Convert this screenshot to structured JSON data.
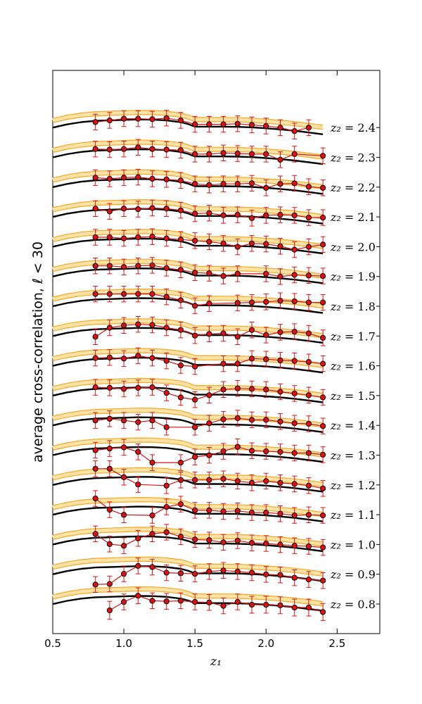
{
  "chart_data": {
    "type": "line",
    "title": "",
    "xlabel": "z₁",
    "ylabel": "average cross-correlation, ℓ < 30",
    "xlim": [
      0.5,
      2.8
    ],
    "xticks": [
      "0.5",
      "1.0",
      "1.5",
      "2.0",
      "2.5"
    ],
    "x": [
      0.8,
      0.9,
      1.0,
      1.1,
      1.2,
      1.3,
      1.4,
      1.5,
      1.6,
      1.7,
      1.8,
      1.9,
      2.0,
      2.1,
      2.2,
      2.3,
      2.4
    ],
    "theory_x": [
      0.5,
      0.6,
      0.7,
      0.8,
      0.9,
      1.0,
      1.1,
      1.2,
      1.3,
      1.4,
      1.45,
      1.5,
      1.6,
      1.7,
      1.8,
      1.9,
      2.0,
      2.1,
      2.2,
      2.3,
      2.4
    ],
    "theory_shape": [
      0.0,
      0.35,
      0.6,
      0.75,
      0.8,
      0.85,
      0.9,
      0.88,
      0.8,
      0.6,
      0.4,
      0.1,
      0.1,
      0.1,
      0.08,
      0.02,
      -0.08,
      -0.2,
      -0.35,
      -0.55,
      -0.75
    ],
    "series_note": "Each panel is vertically offset; data values are deviations (in stacked plot units) relative to the panel's black theory curve.",
    "series": [
      {
        "name": "z₂ = 0.8",
        "label_prefix": "z₂ =",
        "label_value": "0.8",
        "values": [
          null,
          -2.0,
          -0.5,
          0.6,
          -0.3,
          -0.4,
          -0.3,
          -0.5,
          -0.6,
          -1.2,
          -0.5,
          -1.0,
          -1.0,
          -1.1,
          -1.5,
          -1.5,
          -2.3
        ],
        "err": [
          null,
          1.6,
          1.4,
          1.4,
          1.4,
          1.4,
          1.4,
          1.4,
          1.4,
          1.4,
          1.4,
          1.5,
          1.5,
          1.5,
          1.5,
          1.5,
          1.5
        ]
      },
      {
        "name": "z₂ = 0.9",
        "label_prefix": "z₂ =",
        "label_value": "0.9",
        "values": [
          -2.7,
          -2.6,
          -0.8,
          0.6,
          0.4,
          -0.6,
          -0.7,
          -0.8,
          -0.4,
          -0.2,
          -0.4,
          -0.6,
          -0.9,
          -1.0,
          -1.5,
          -1.8,
          -2.0
        ],
        "err": [
          1.4,
          1.4,
          1.4,
          1.4,
          1.4,
          1.4,
          1.4,
          1.4,
          1.4,
          1.4,
          1.4,
          1.4,
          1.4,
          1.4,
          1.4,
          1.4,
          1.4
        ]
      },
      {
        "name": "z₂ = 1.0",
        "label_prefix": "z₂ =",
        "label_value": "1.0",
        "values": [
          1.0,
          -0.8,
          -1.1,
          0.2,
          1.0,
          1.3,
          0.5,
          0.0,
          -0.1,
          -0.5,
          -0.2,
          -0.6,
          -0.7,
          -0.9,
          -1.1,
          -1.2,
          -1.4
        ],
        "err": [
          1.4,
          1.4,
          1.4,
          1.4,
          1.4,
          1.4,
          1.4,
          1.4,
          1.4,
          1.4,
          1.4,
          1.4,
          1.4,
          1.4,
          1.4,
          1.4,
          1.4
        ]
      },
      {
        "name": "z₂ = 1.1",
        "label_prefix": "z₂ =",
        "label_value": "1.1",
        "values": [
          2.0,
          0.0,
          -0.9,
          null,
          -1.0,
          0.5,
          1.0,
          -0.1,
          -0.1,
          -0.3,
          -0.2,
          -0.5,
          -0.5,
          -0.7,
          -1.0,
          -0.9,
          -1.0
        ],
        "err": [
          1.4,
          1.4,
          1.4,
          null,
          1.4,
          1.4,
          1.4,
          1.4,
          1.4,
          1.4,
          1.4,
          1.4,
          1.4,
          1.4,
          1.4,
          1.4,
          1.4
        ]
      },
      {
        "name": "z₂ = 1.2",
        "label_prefix": "z₂ =",
        "label_value": "1.2",
        "values": [
          2.0,
          2.0,
          0.5,
          -0.8,
          null,
          -1.0,
          0.0,
          0.0,
          0.0,
          0.2,
          -0.2,
          -0.5,
          -0.2,
          -0.5,
          -0.7,
          -1.0,
          -1.5
        ],
        "err": [
          1.4,
          1.4,
          1.4,
          1.4,
          null,
          1.4,
          1.4,
          1.4,
          1.4,
          1.4,
          1.4,
          1.4,
          1.4,
          1.4,
          1.4,
          1.4,
          1.4
        ]
      },
      {
        "name": "z₂ = 1.3",
        "label_prefix": "z₂ =",
        "label_value": "1.3",
        "values": [
          0.0,
          0.3,
          0.5,
          -0.3,
          -2.2,
          null,
          -2.2,
          -1.2,
          -0.9,
          -0.2,
          0.6,
          -0.1,
          -0.2,
          -0.3,
          -0.5,
          -0.5,
          -0.8
        ],
        "err": [
          1.4,
          1.4,
          1.4,
          1.4,
          1.4,
          null,
          1.4,
          1.4,
          1.4,
          1.4,
          1.4,
          1.4,
          1.4,
          1.4,
          1.4,
          1.4,
          1.4
        ]
      },
      {
        "name": "z₂ = 1.4",
        "label_prefix": "z₂ =",
        "label_value": "1.4",
        "values": [
          0.0,
          0.3,
          0.0,
          -0.3,
          0.0,
          -1.2,
          null,
          -1.2,
          -0.5,
          0.2,
          0.4,
          0.1,
          0.1,
          -0.2,
          -0.5,
          -0.6,
          -1.0
        ],
        "err": [
          1.4,
          1.4,
          1.4,
          1.4,
          1.4,
          1.4,
          null,
          1.4,
          1.4,
          1.4,
          1.4,
          1.4,
          1.4,
          1.4,
          1.4,
          1.4,
          1.4
        ]
      },
      {
        "name": "z₂ = 1.5",
        "label_prefix": "z₂ =",
        "label_value": "1.5",
        "values": [
          0.6,
          0.5,
          0.3,
          0.5,
          0.6,
          -0.4,
          -1.2,
          -1.6,
          -0.8,
          0.2,
          0.4,
          0.3,
          0.2,
          -0.2,
          -0.5,
          -0.8,
          -1.2
        ],
        "err": [
          1.4,
          1.4,
          1.4,
          1.4,
          1.4,
          1.4,
          1.4,
          1.4,
          1.4,
          1.4,
          1.4,
          1.4,
          1.4,
          1.4,
          1.4,
          1.4,
          1.4
        ]
      },
      {
        "name": "z₂ = 1.6",
        "label_prefix": "z₂ =",
        "label_value": "1.6",
        "values": [
          0.5,
          0.6,
          0.4,
          0.9,
          0.5,
          0.0,
          -0.8,
          -1.0,
          null,
          -0.5,
          -0.5,
          0.4,
          0.3,
          0.1,
          0.0,
          -0.2,
          -0.5
        ],
        "err": [
          1.4,
          1.4,
          1.4,
          1.4,
          1.4,
          1.4,
          1.4,
          1.4,
          null,
          1.4,
          1.4,
          1.4,
          1.4,
          1.4,
          1.4,
          1.4,
          1.4
        ]
      },
      {
        "name": "z₂ = 1.7",
        "label_prefix": "z₂ =",
        "label_value": "1.7",
        "values": [
          -1.0,
          0.6,
          1.0,
          1.2,
          1.1,
          0.6,
          0.2,
          -0.8,
          -0.5,
          -0.4,
          -1.0,
          0.2,
          -0.7,
          -0.2,
          -0.1,
          -0.4,
          -1.2
        ],
        "err": [
          1.4,
          1.4,
          1.4,
          1.4,
          1.4,
          1.4,
          1.4,
          1.4,
          1.4,
          1.4,
          1.4,
          1.4,
          1.4,
          1.4,
          1.4,
          1.4,
          1.4
        ]
      },
      {
        "name": "z₂ = 1.8",
        "label_prefix": "z₂ =",
        "label_value": "1.8",
        "values": [
          1.3,
          1.3,
          1.3,
          1.3,
          1.3,
          0.8,
          0.2,
          -0.8,
          -0.4,
          null,
          -0.3,
          -0.2,
          -0.1,
          0.1,
          0.0,
          -0.2,
          -0.2
        ],
        "err": [
          1.4,
          1.4,
          1.4,
          1.4,
          1.4,
          1.4,
          1.4,
          1.4,
          1.4,
          null,
          1.4,
          1.4,
          1.4,
          1.4,
          1.4,
          1.4,
          1.4
        ]
      },
      {
        "name": "z₂ = 1.9",
        "label_prefix": "z₂ =",
        "label_value": "1.9",
        "values": [
          1.0,
          1.0,
          0.8,
          1.0,
          1.1,
          0.6,
          0.3,
          -0.2,
          -0.3,
          -0.8,
          -0.4,
          null,
          -0.4,
          -0.9,
          -0.6,
          -0.7,
          -0.8
        ],
        "err": [
          1.4,
          1.4,
          1.4,
          1.4,
          1.4,
          1.4,
          1.4,
          1.4,
          1.4,
          1.4,
          1.4,
          null,
          1.4,
          1.4,
          1.4,
          1.4,
          1.4
        ]
      },
      {
        "name": "z₂ = 2.0",
        "label_prefix": "z₂ =",
        "label_value": "2.0",
        "values": [
          0.8,
          0.8,
          0.6,
          0.8,
          0.9,
          0.6,
          0.4,
          0.2,
          0.0,
          -0.3,
          -0.9,
          -0.3,
          -0.4,
          -0.8,
          -1.4,
          -0.9,
          -0.5
        ],
        "err": [
          1.4,
          1.4,
          1.4,
          1.4,
          1.4,
          1.4,
          1.4,
          1.4,
          1.4,
          1.4,
          1.4,
          1.4,
          1.4,
          1.4,
          1.4,
          1.4,
          1.4
        ]
      },
      {
        "name": "z₂ = 2.1",
        "label_prefix": "z₂ =",
        "label_value": "2.1",
        "values": [
          0.6,
          0.1,
          0.6,
          0.5,
          0.7,
          0.6,
          0.3,
          -0.3,
          -0.2,
          -0.6,
          -0.5,
          -1.1,
          -0.6,
          -0.5,
          -0.6,
          -1.0,
          -1.0
        ],
        "err": [
          1.4,
          1.4,
          1.4,
          1.4,
          1.4,
          1.4,
          1.4,
          1.4,
          1.4,
          1.4,
          1.4,
          1.4,
          1.4,
          1.4,
          1.4,
          1.4,
          1.4
        ]
      },
      {
        "name": "z₂ = 2.2",
        "label_prefix": "z₂ =",
        "label_value": "2.2",
        "values": [
          0.8,
          0.6,
          0.8,
          0.9,
          0.6,
          0.5,
          0.3,
          -0.3,
          -0.5,
          -0.3,
          -0.3,
          -0.2,
          -1.0,
          -0.3,
          -0.2,
          -0.8,
          -1.0
        ],
        "err": [
          1.4,
          1.4,
          1.4,
          1.4,
          1.4,
          1.4,
          1.4,
          1.4,
          1.4,
          1.4,
          1.4,
          1.4,
          1.4,
          1.4,
          1.4,
          1.4,
          1.4
        ]
      },
      {
        "name": "z₂ = 2.3",
        "label_prefix": "z₂ =",
        "label_value": "2.3",
        "values": [
          0.6,
          0.5,
          0.6,
          0.9,
          0.6,
          0.5,
          0.4,
          -0.3,
          -0.3,
          -0.1,
          -0.2,
          -0.3,
          -0.3,
          -1.3,
          -0.3,
          null,
          -0.6
        ],
        "err": [
          1.4,
          1.4,
          1.4,
          1.4,
          1.4,
          1.4,
          1.4,
          1.4,
          1.4,
          1.4,
          1.4,
          1.4,
          1.4,
          1.4,
          1.4,
          null,
          1.4
        ]
      },
      {
        "name": "z₂ = 2.4",
        "label_prefix": "z₂ =",
        "label_value": "2.4",
        "values": [
          0.1,
          0.4,
          0.7,
          0.7,
          0.6,
          0.8,
          0.4,
          -0.3,
          -0.3,
          -0.3,
          -0.2,
          -0.4,
          -0.6,
          -0.9,
          -1.5,
          -0.9,
          null
        ],
        "err": [
          1.4,
          1.4,
          1.4,
          1.4,
          1.4,
          1.4,
          1.4,
          1.4,
          1.4,
          1.4,
          1.4,
          1.4,
          1.4,
          1.4,
          1.4,
          1.4,
          null
        ]
      }
    ],
    "colors": {
      "theory": "#000000",
      "band": "#f9a825",
      "band_fill": "#fde3a7",
      "data": "#dd1111",
      "marker_edge": "#000000",
      "axis": "#000000"
    }
  }
}
